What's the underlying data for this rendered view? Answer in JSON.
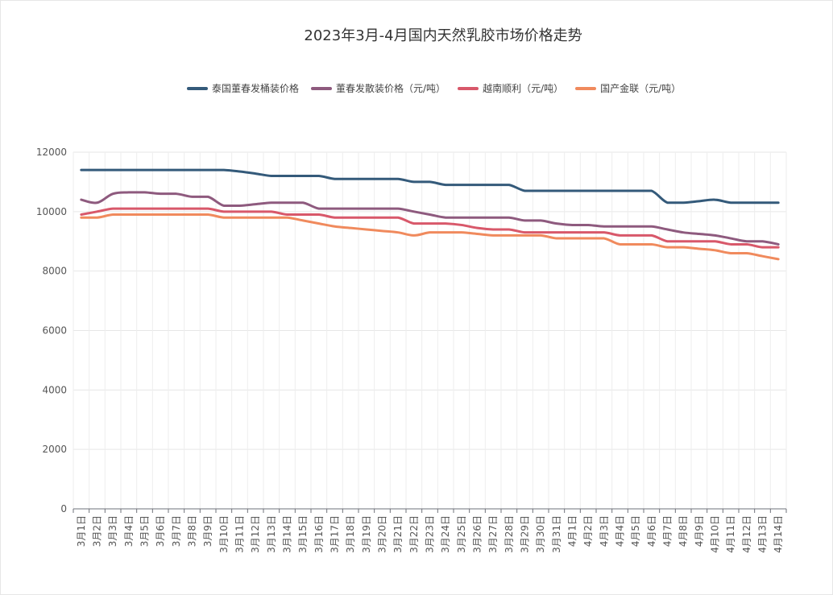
{
  "chart_data": {
    "type": "line",
    "title": "2023年3月-4月国内天然乳胶市场价格走势",
    "xlabel": "",
    "ylabel": "",
    "ylim": [
      0,
      12000
    ],
    "yticks": [
      0,
      2000,
      4000,
      6000,
      8000,
      10000,
      12000
    ],
    "grid": true,
    "legend_position": "top",
    "categories": [
      "3月1日",
      "3月2日",
      "3月3日",
      "3月4日",
      "3月5日",
      "3月6日",
      "3月7日",
      "3月8日",
      "3月9日",
      "3月10日",
      "3月11日",
      "3月12日",
      "3月13日",
      "3月14日",
      "3月15日",
      "3月16日",
      "3月17日",
      "3月18日",
      "3月19日",
      "3月20日",
      "3月21日",
      "3月22日",
      "3月23日",
      "3月24日",
      "3月25日",
      "3月26日",
      "3月27日",
      "3月28日",
      "3月29日",
      "3月30日",
      "3月31日",
      "4月1日",
      "4月2日",
      "4月3日",
      "4月4日",
      "4月5日",
      "4月6日",
      "4月7日",
      "4月8日",
      "4月9日",
      "4月10日",
      "4月11日",
      "4月12日",
      "4月13日",
      "4月14日"
    ],
    "series": [
      {
        "name": "泰国董春发桶装价格",
        "color": "#345a7a",
        "values": [
          11400,
          11400,
          11400,
          11400,
          11400,
          11400,
          11400,
          11400,
          11400,
          11400,
          11350,
          11280,
          11200,
          11200,
          11200,
          11200,
          11100,
          11100,
          11100,
          11100,
          11100,
          11000,
          11000,
          10900,
          10900,
          10900,
          10900,
          10900,
          10700,
          10700,
          10700,
          10700,
          10700,
          10700,
          10700,
          10700,
          10700,
          10300,
          10300,
          10350,
          10400,
          10300,
          10300,
          10300,
          10300
        ]
      },
      {
        "name": "董春发散装价格（元/吨）",
        "color": "#8e5a7e",
        "values": [
          10400,
          10300,
          10600,
          10650,
          10650,
          10600,
          10600,
          10500,
          10500,
          10200,
          10200,
          10250,
          10300,
          10300,
          10300,
          10100,
          10100,
          10100,
          10100,
          10100,
          10100,
          10000,
          9900,
          9800,
          9800,
          9800,
          9800,
          9800,
          9700,
          9700,
          9600,
          9550,
          9550,
          9500,
          9500,
          9500,
          9500,
          9400,
          9300,
          9250,
          9200,
          9100,
          9000,
          9000,
          8900
        ]
      },
      {
        "name": "越南顺利（元/吨）",
        "color": "#d8586a",
        "values": [
          9900,
          10000,
          10100,
          10100,
          10100,
          10100,
          10100,
          10100,
          10100,
          10000,
          10000,
          10000,
          10000,
          9900,
          9900,
          9900,
          9800,
          9800,
          9800,
          9800,
          9800,
          9600,
          9600,
          9600,
          9550,
          9450,
          9400,
          9400,
          9300,
          9300,
          9300,
          9300,
          9300,
          9300,
          9200,
          9200,
          9200,
          9000,
          9000,
          9000,
          9000,
          8900,
          8900,
          8800,
          8800
        ]
      },
      {
        "name": "国产金联（元/吨）",
        "color": "#f08a5d",
        "values": [
          9800,
          9800,
          9900,
          9900,
          9900,
          9900,
          9900,
          9900,
          9900,
          9800,
          9800,
          9800,
          9800,
          9800,
          9700,
          9600,
          9500,
          9450,
          9400,
          9350,
          9300,
          9200,
          9300,
          9300,
          9300,
          9250,
          9200,
          9200,
          9200,
          9200,
          9100,
          9100,
          9100,
          9100,
          8900,
          8900,
          8900,
          8800,
          8800,
          8750,
          8700,
          8600,
          8600,
          8500,
          8400
        ]
      }
    ]
  }
}
